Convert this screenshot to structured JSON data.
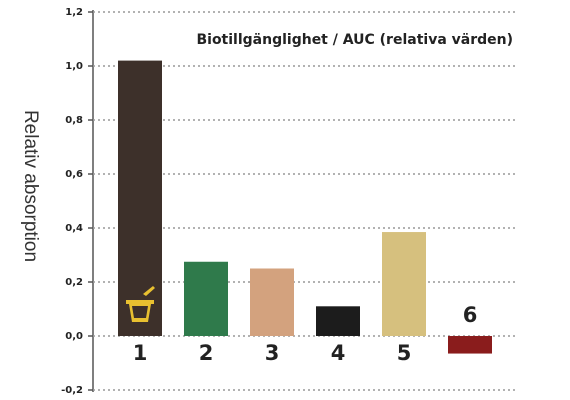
{
  "chart_data": {
    "type": "bar",
    "title": "Biotillgänglighet / AUC (relativa värden)",
    "y_label": "Relativ absorption",
    "categories": [
      "1",
      "2",
      "3",
      "4",
      "5",
      "6"
    ],
    "values": [
      1.02,
      0.275,
      0.25,
      0.11,
      0.385,
      -0.065
    ],
    "colors": [
      "#3d302a",
      "#2f7a4b",
      "#d3a27e",
      "#1c1c1c",
      "#d6c07e",
      "#8a1c1c"
    ],
    "ylim": [
      -0.2,
      1.2
    ],
    "yticks": [
      {
        "value": -0.2,
        "label": "-0,2"
      },
      {
        "value": 0,
        "label": "0,0"
      },
      {
        "value": 0.2,
        "label": "0,2"
      },
      {
        "value": 0.4,
        "label": "0,4"
      },
      {
        "value": 0.6,
        "label": "0,6"
      },
      {
        "value": 0.8,
        "label": "0,8"
      },
      {
        "value": 1.0,
        "label": "1,0"
      },
      {
        "value": 1.2,
        "label": "1,2"
      }
    ],
    "grid": true
  }
}
